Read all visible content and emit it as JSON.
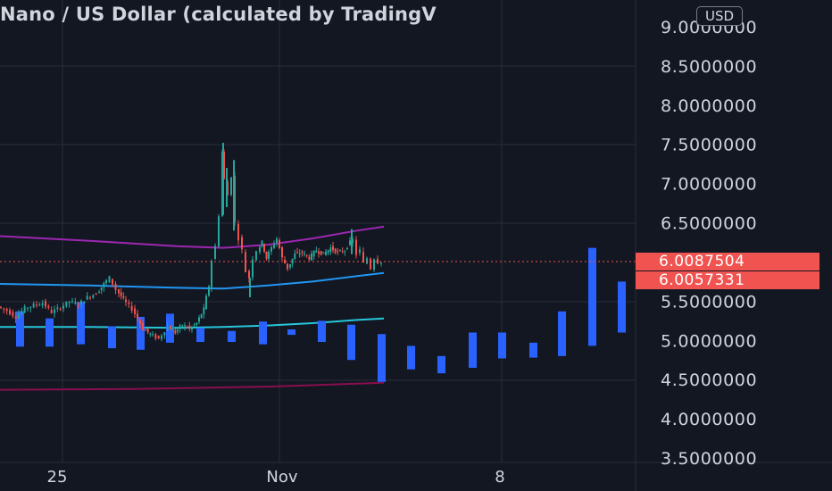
{
  "header": {
    "title": "Nano / US Dollar (calculated by TradingV",
    "currency_button": "USD"
  },
  "price_labels": [
    {
      "value": "6.0087504",
      "color": "#f05350"
    },
    {
      "value": "6.0057331",
      "color": "#f05350"
    }
  ],
  "colors": {
    "background": "#131722",
    "grid": "#2a2e39",
    "up": "#26a69a",
    "down": "#ef5350",
    "histogram": "#2962ff",
    "purple_band": "#9c27b0",
    "dark_band": "#880e4f",
    "blue_line": "#2196f3",
    "teal_line": "#26c6da",
    "last_price": "#f05350"
  },
  "chart_data": {
    "type": "candlestick",
    "title": "Nano / US Dollar (calculated by TradingV",
    "currency": "USD",
    "y_axis": {
      "ticks": [
        "9.0000000",
        "8.5000000",
        "8.0000000",
        "7.5000000",
        "7.0000000",
        "6.5000000",
        "5.5000000",
        "5.0000000",
        "4.5000000",
        "4.0000000",
        "3.5000000"
      ],
      "range": [
        3.5,
        9.0
      ]
    },
    "x_axis": {
      "ticks": [
        "25",
        "Nov",
        "8"
      ]
    },
    "last_price": 6.0087504,
    "second_price": 6.0057331,
    "price_path": [
      [
        0,
        5.43
      ],
      [
        10,
        5.38
      ],
      [
        20,
        5.3
      ],
      [
        30,
        5.41
      ],
      [
        40,
        5.45
      ],
      [
        50,
        5.48
      ],
      [
        60,
        5.36
      ],
      [
        70,
        5.42
      ],
      [
        80,
        5.5
      ],
      [
        90,
        5.46
      ],
      [
        100,
        5.55
      ],
      [
        110,
        5.6
      ],
      [
        118,
        5.72
      ],
      [
        125,
        5.8
      ],
      [
        132,
        5.65
      ],
      [
        140,
        5.52
      ],
      [
        150,
        5.4
      ],
      [
        156,
        5.28
      ],
      [
        162,
        5.15
      ],
      [
        170,
        5.08
      ],
      [
        180,
        5.02
      ],
      [
        190,
        5.18
      ],
      [
        198,
        5.1
      ],
      [
        206,
        5.2
      ],
      [
        214,
        5.15
      ],
      [
        222,
        5.22
      ],
      [
        230,
        5.4
      ],
      [
        236,
        5.7
      ],
      [
        240,
        6.02
      ],
      [
        244,
        6.2
      ],
      [
        248,
        6.6
      ],
      [
        250,
        7.4
      ],
      [
        254,
        7.05
      ],
      [
        258,
        6.85
      ],
      [
        262,
        7.1
      ],
      [
        266,
        6.5
      ],
      [
        270,
        6.3
      ],
      [
        274,
        6.15
      ],
      [
        278,
        5.88
      ],
      [
        282,
        5.8
      ],
      [
        286,
        6.05
      ],
      [
        290,
        6.15
      ],
      [
        295,
        6.25
      ],
      [
        300,
        6.05
      ],
      [
        306,
        6.18
      ],
      [
        312,
        6.3
      ],
      [
        318,
        6.05
      ],
      [
        324,
        5.92
      ],
      [
        332,
        6.1
      ],
      [
        340,
        6.12
      ],
      [
        348,
        6.05
      ],
      [
        356,
        6.15
      ],
      [
        364,
        6.1
      ],
      [
        372,
        6.18
      ],
      [
        380,
        6.12
      ],
      [
        388,
        6.15
      ],
      [
        394,
        6.25
      ],
      [
        398,
        6.28
      ],
      [
        402,
        6.1
      ],
      [
        406,
        6.15
      ],
      [
        410,
        5.98
      ],
      [
        414,
        6.05
      ],
      [
        418,
        5.92
      ],
      [
        422,
        6.05
      ],
      [
        426,
        6.0
      ],
      [
        430,
        6.01
      ]
    ],
    "spikes": [
      [
        250,
        7.52,
        6.6
      ],
      [
        254,
        7.2,
        6.7
      ],
      [
        262,
        7.3,
        6.4
      ],
      [
        280,
        5.8,
        5.55
      ],
      [
        394,
        6.42,
        6.1
      ]
    ],
    "series": [
      {
        "name": "",
        "color": "#9c27b0",
        "points": [
          [
            0,
            6.33
          ],
          [
            100,
            6.27
          ],
          [
            200,
            6.2
          ],
          [
            250,
            6.18
          ],
          [
            300,
            6.22
          ],
          [
            350,
            6.3
          ],
          [
            400,
            6.4
          ],
          [
            430,
            6.45
          ]
        ]
      },
      {
        "name": "",
        "color": "#2196f3",
        "points": [
          [
            0,
            5.72
          ],
          [
            100,
            5.7
          ],
          [
            200,
            5.67
          ],
          [
            250,
            5.66
          ],
          [
            300,
            5.7
          ],
          [
            350,
            5.75
          ],
          [
            400,
            5.82
          ],
          [
            430,
            5.86
          ]
        ]
      },
      {
        "name": "",
        "color": "#26c6da",
        "points": [
          [
            0,
            5.17
          ],
          [
            100,
            5.17
          ],
          [
            200,
            5.16
          ],
          [
            250,
            5.17
          ],
          [
            300,
            5.19
          ],
          [
            350,
            5.22
          ],
          [
            400,
            5.26
          ],
          [
            430,
            5.28
          ]
        ]
      },
      {
        "name": "",
        "color": "#880e4f",
        "points": [
          [
            0,
            4.37
          ],
          [
            150,
            4.38
          ],
          [
            300,
            4.41
          ],
          [
            430,
            4.46
          ],
          [
            430,
            4.46
          ]
        ]
      }
    ],
    "histogram": [
      {
        "x": 22,
        "top": 5.37,
        "bottom": 4.92
      },
      {
        "x": 55,
        "top": 5.28,
        "bottom": 4.92
      },
      {
        "x": 90,
        "top": 5.49,
        "bottom": 4.95
      },
      {
        "x": 125,
        "top": 5.18,
        "bottom": 4.9
      },
      {
        "x": 157,
        "top": 5.3,
        "bottom": 4.88
      },
      {
        "x": 190,
        "top": 5.34,
        "bottom": 4.97
      },
      {
        "x": 224,
        "top": 5.16,
        "bottom": 4.98
      },
      {
        "x": 259,
        "top": 5.12,
        "bottom": 4.98
      },
      {
        "x": 294,
        "top": 5.24,
        "bottom": 4.95
      },
      {
        "x": 326,
        "top": 5.14,
        "bottom": 5.07
      },
      {
        "x": 360,
        "top": 5.25,
        "bottom": 4.98
      },
      {
        "x": 393,
        "top": 5.2,
        "bottom": 4.75
      },
      {
        "x": 427,
        "top": 5.08,
        "bottom": 4.47
      },
      {
        "x": 460,
        "top": 4.93,
        "bottom": 4.63
      },
      {
        "x": 494,
        "top": 4.8,
        "bottom": 4.58
      },
      {
        "x": 529,
        "top": 5.1,
        "bottom": 4.65
      },
      {
        "x": 562,
        "top": 5.1,
        "bottom": 4.77
      },
      {
        "x": 597,
        "top": 4.97,
        "bottom": 4.78
      },
      {
        "x": 629,
        "top": 5.37,
        "bottom": 4.8
      },
      {
        "x": 663,
        "top": 6.18,
        "bottom": 4.93
      },
      {
        "x": 696,
        "top": 5.75,
        "bottom": 5.1
      }
    ]
  }
}
